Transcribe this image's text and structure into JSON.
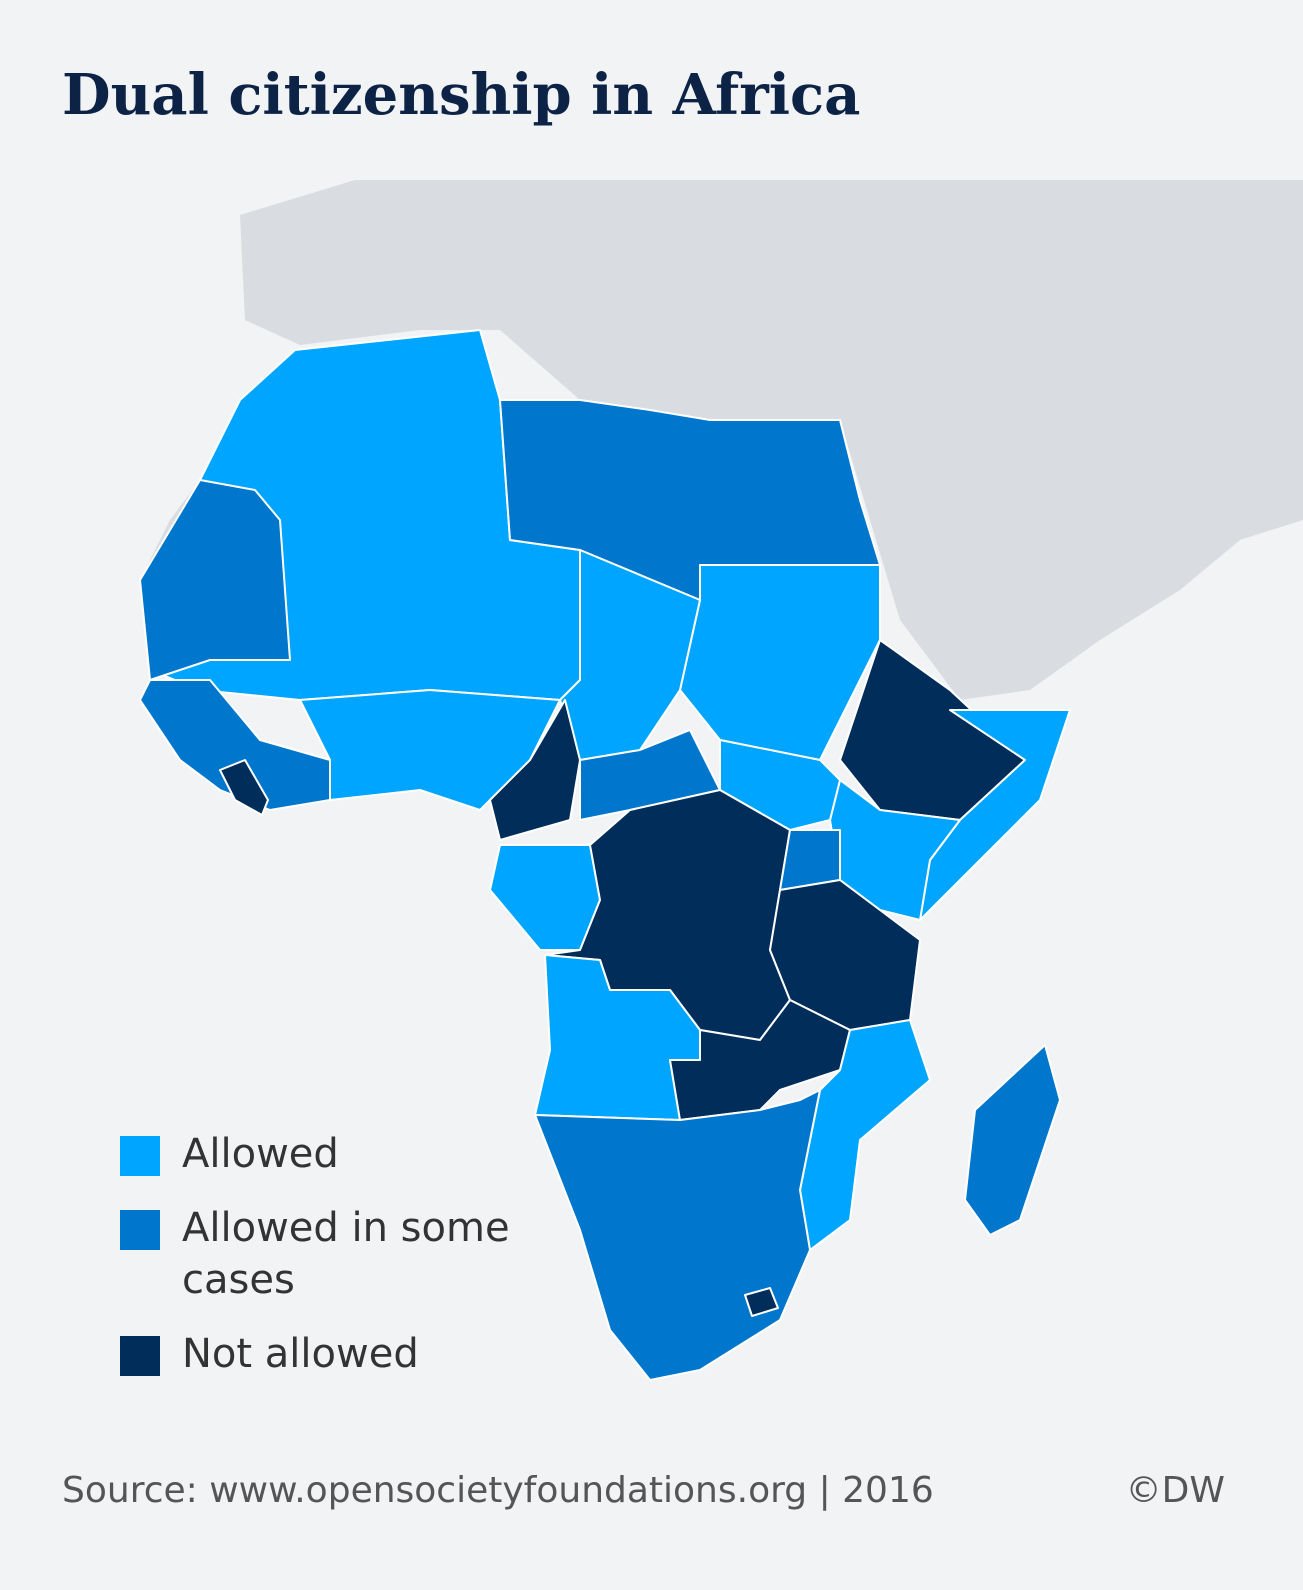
{
  "header": {
    "title": "Dual citizenship in Africa"
  },
  "legend": [
    {
      "label": "Allowed",
      "color": "#00a5ff"
    },
    {
      "label": "Allowed in some cases",
      "color": "#0077cc"
    },
    {
      "label": "Not allowed",
      "color": "#002d5a"
    }
  ],
  "footer": {
    "source": "Source: www.opensocietyfoundations.org | 2016",
    "credit": "©DW"
  }
}
